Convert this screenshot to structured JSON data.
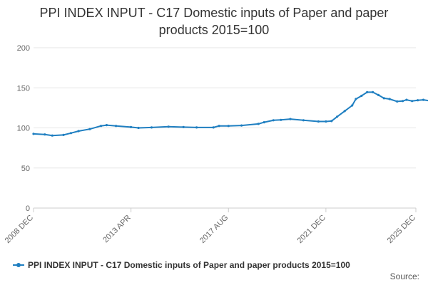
{
  "chart_data": {
    "type": "line",
    "title": "PPI INDEX INPUT - C17 Domestic inputs of Paper and paper\nproducts 2015=100",
    "xlabel": "",
    "ylabel": "",
    "ylim": [
      0,
      200
    ],
    "y_ticks": [
      "0",
      "50",
      "100",
      "150",
      "200"
    ],
    "x_range": [
      "2008 DEC",
      "2025 DEC"
    ],
    "x_ticks": [
      "2008 DEC",
      "2013 APR",
      "2017 AUG",
      "2021 DEC",
      "2025 DEC"
    ],
    "grid": true,
    "legend_position": "bottom",
    "series": [
      {
        "name": "PPI INDEX INPUT - C17 Domestic inputs of Paper and paper products 2015=100",
        "color": "#1f7fc1",
        "points": [
          [
            "2008 DEC",
            92.5
          ],
          [
            "2009 JUN",
            91.8
          ],
          [
            "2009 OCT",
            90.5
          ],
          [
            "2010 APR",
            91.2
          ],
          [
            "2010 AUG",
            93.5
          ],
          [
            "2010 DEC",
            96.0
          ],
          [
            "2011 JUN",
            98.5
          ],
          [
            "2011 DEC",
            102.5
          ],
          [
            "2012 MAR",
            103.5
          ],
          [
            "2012 AUG",
            102.5
          ],
          [
            "2013 APR",
            101.0
          ],
          [
            "2013 AUG",
            100.0
          ],
          [
            "2014 MAR",
            100.5
          ],
          [
            "2014 DEC",
            101.5
          ],
          [
            "2015 AUG",
            101.0
          ],
          [
            "2016 MAR",
            100.5
          ],
          [
            "2016 DEC",
            100.5
          ],
          [
            "2017 MAR",
            102.5
          ],
          [
            "2017 AUG",
            102.5
          ],
          [
            "2018 MAR",
            103.0
          ],
          [
            "2018 DEC",
            105.0
          ],
          [
            "2019 MAR",
            107.0
          ],
          [
            "2019 AUG",
            109.5
          ],
          [
            "2019 DEC",
            110.0
          ],
          [
            "2020 MAY",
            111.0
          ],
          [
            "2020 DEC",
            109.5
          ],
          [
            "2021 AUG",
            108.0
          ],
          [
            "2021 DEC",
            108.0
          ],
          [
            "2022 MAR",
            108.5
          ],
          [
            "2022 JUN",
            114.0
          ],
          [
            "2022 OCT",
            121.0
          ],
          [
            "2023 FEB",
            128.0
          ],
          [
            "2023 APR",
            136.0
          ],
          [
            "2023 JUL",
            140.0
          ],
          [
            "2023 OCT",
            144.5
          ],
          [
            "2024 JAN",
            144.5
          ],
          [
            "2024 APR",
            141.0
          ],
          [
            "2024 JUL",
            137.0
          ],
          [
            "2024 OCT",
            136.0
          ],
          [
            "2025 FEB",
            133.0
          ],
          [
            "2025 MAY",
            133.5
          ],
          [
            "2025 JUL",
            135.0
          ],
          [
            "2025 OCT",
            133.5
          ],
          [
            "2026 JAN",
            134.5
          ],
          [
            "2026 APR",
            135.0
          ],
          [
            "2026 JUL",
            134.0
          ],
          [
            "2026 AUG",
            133.5
          ]
        ]
      }
    ],
    "source_label": "Source:"
  }
}
